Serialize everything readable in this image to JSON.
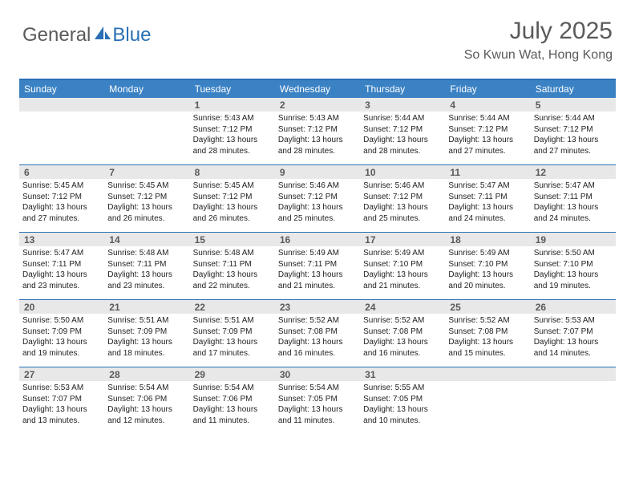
{
  "logo": {
    "text1": "General",
    "text2": "Blue"
  },
  "title": "July 2025",
  "location": "So Kwun Wat, Hong Kong",
  "colors": {
    "header_bg": "#3b82c4",
    "border": "#2a6fb5",
    "daynum_bg": "#e8e8e8",
    "text_gray": "#5a5a5a"
  },
  "day_headers": [
    "Sunday",
    "Monday",
    "Tuesday",
    "Wednesday",
    "Thursday",
    "Friday",
    "Saturday"
  ],
  "weeks": [
    [
      null,
      null,
      {
        "n": "1",
        "sr": "5:43 AM",
        "ss": "7:12 PM",
        "dl": "13 hours and 28 minutes."
      },
      {
        "n": "2",
        "sr": "5:43 AM",
        "ss": "7:12 PM",
        "dl": "13 hours and 28 minutes."
      },
      {
        "n": "3",
        "sr": "5:44 AM",
        "ss": "7:12 PM",
        "dl": "13 hours and 28 minutes."
      },
      {
        "n": "4",
        "sr": "5:44 AM",
        "ss": "7:12 PM",
        "dl": "13 hours and 27 minutes."
      },
      {
        "n": "5",
        "sr": "5:44 AM",
        "ss": "7:12 PM",
        "dl": "13 hours and 27 minutes."
      }
    ],
    [
      {
        "n": "6",
        "sr": "5:45 AM",
        "ss": "7:12 PM",
        "dl": "13 hours and 27 minutes."
      },
      {
        "n": "7",
        "sr": "5:45 AM",
        "ss": "7:12 PM",
        "dl": "13 hours and 26 minutes."
      },
      {
        "n": "8",
        "sr": "5:45 AM",
        "ss": "7:12 PM",
        "dl": "13 hours and 26 minutes."
      },
      {
        "n": "9",
        "sr": "5:46 AM",
        "ss": "7:12 PM",
        "dl": "13 hours and 25 minutes."
      },
      {
        "n": "10",
        "sr": "5:46 AM",
        "ss": "7:12 PM",
        "dl": "13 hours and 25 minutes."
      },
      {
        "n": "11",
        "sr": "5:47 AM",
        "ss": "7:11 PM",
        "dl": "13 hours and 24 minutes."
      },
      {
        "n": "12",
        "sr": "5:47 AM",
        "ss": "7:11 PM",
        "dl": "13 hours and 24 minutes."
      }
    ],
    [
      {
        "n": "13",
        "sr": "5:47 AM",
        "ss": "7:11 PM",
        "dl": "13 hours and 23 minutes."
      },
      {
        "n": "14",
        "sr": "5:48 AM",
        "ss": "7:11 PM",
        "dl": "13 hours and 23 minutes."
      },
      {
        "n": "15",
        "sr": "5:48 AM",
        "ss": "7:11 PM",
        "dl": "13 hours and 22 minutes."
      },
      {
        "n": "16",
        "sr": "5:49 AM",
        "ss": "7:11 PM",
        "dl": "13 hours and 21 minutes."
      },
      {
        "n": "17",
        "sr": "5:49 AM",
        "ss": "7:10 PM",
        "dl": "13 hours and 21 minutes."
      },
      {
        "n": "18",
        "sr": "5:49 AM",
        "ss": "7:10 PM",
        "dl": "13 hours and 20 minutes."
      },
      {
        "n": "19",
        "sr": "5:50 AM",
        "ss": "7:10 PM",
        "dl": "13 hours and 19 minutes."
      }
    ],
    [
      {
        "n": "20",
        "sr": "5:50 AM",
        "ss": "7:09 PM",
        "dl": "13 hours and 19 minutes."
      },
      {
        "n": "21",
        "sr": "5:51 AM",
        "ss": "7:09 PM",
        "dl": "13 hours and 18 minutes."
      },
      {
        "n": "22",
        "sr": "5:51 AM",
        "ss": "7:09 PM",
        "dl": "13 hours and 17 minutes."
      },
      {
        "n": "23",
        "sr": "5:52 AM",
        "ss": "7:08 PM",
        "dl": "13 hours and 16 minutes."
      },
      {
        "n": "24",
        "sr": "5:52 AM",
        "ss": "7:08 PM",
        "dl": "13 hours and 16 minutes."
      },
      {
        "n": "25",
        "sr": "5:52 AM",
        "ss": "7:08 PM",
        "dl": "13 hours and 15 minutes."
      },
      {
        "n": "26",
        "sr": "5:53 AM",
        "ss": "7:07 PM",
        "dl": "13 hours and 14 minutes."
      }
    ],
    [
      {
        "n": "27",
        "sr": "5:53 AM",
        "ss": "7:07 PM",
        "dl": "13 hours and 13 minutes."
      },
      {
        "n": "28",
        "sr": "5:54 AM",
        "ss": "7:06 PM",
        "dl": "13 hours and 12 minutes."
      },
      {
        "n": "29",
        "sr": "5:54 AM",
        "ss": "7:06 PM",
        "dl": "13 hours and 11 minutes."
      },
      {
        "n": "30",
        "sr": "5:54 AM",
        "ss": "7:05 PM",
        "dl": "13 hours and 11 minutes."
      },
      {
        "n": "31",
        "sr": "5:55 AM",
        "ss": "7:05 PM",
        "dl": "13 hours and 10 minutes."
      },
      null,
      null
    ]
  ],
  "labels": {
    "sunrise": "Sunrise: ",
    "sunset": "Sunset: ",
    "daylight": "Daylight: "
  }
}
